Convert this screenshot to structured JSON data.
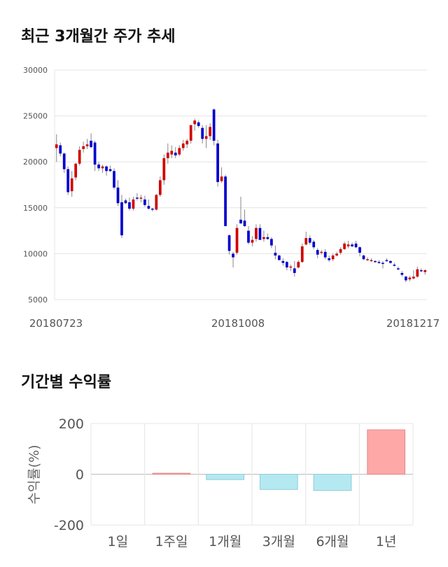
{
  "price_section": {
    "title": "최근 3개월간 주가 추세"
  },
  "returns_section": {
    "title": "기간별 수익률"
  },
  "chart_data": [
    {
      "type": "candlestick",
      "ylim": [
        5000,
        30000
      ],
      "yticks": [
        5000,
        10000,
        15000,
        20000,
        25000,
        30000
      ],
      "xticks": [
        "20180723",
        "20181008",
        "20181217"
      ],
      "grid": true,
      "colors": {
        "up": "#d10000",
        "down": "#0000cc",
        "wick": "#888888"
      },
      "ohlc": [
        [
          21500,
          23000,
          20000,
          21900
        ],
        [
          21800,
          22100,
          20600,
          20900
        ],
        [
          20900,
          21000,
          18800,
          19200
        ],
        [
          19200,
          19500,
          16400,
          16700
        ],
        [
          16800,
          19000,
          16200,
          18200
        ],
        [
          18300,
          19900,
          18000,
          19800
        ],
        [
          19800,
          21700,
          19600,
          21300
        ],
        [
          21400,
          22200,
          21000,
          21700
        ],
        [
          21700,
          22500,
          21400,
          21900
        ],
        [
          22300,
          23100,
          21500,
          21600
        ],
        [
          22100,
          22300,
          19000,
          19700
        ],
        [
          19700,
          20000,
          19000,
          19300
        ],
        [
          19300,
          19700,
          18800,
          19500
        ],
        [
          19500,
          19600,
          18500,
          19000
        ],
        [
          19200,
          19600,
          18900,
          19000
        ],
        [
          19000,
          19300,
          17000,
          17200
        ],
        [
          17200,
          18000,
          15200,
          15500
        ],
        [
          15600,
          16400,
          11700,
          12000
        ],
        [
          15800,
          16000,
          15400,
          15500
        ],
        [
          15600,
          16100,
          14700,
          14900
        ],
        [
          14900,
          16200,
          14700,
          15900
        ],
        [
          16100,
          16600,
          15800,
          16000
        ],
        [
          16000,
          16400,
          15600,
          16100
        ],
        [
          15900,
          16300,
          15100,
          15300
        ],
        [
          15200,
          15900,
          14800,
          14900
        ],
        [
          14900,
          15000,
          14600,
          14800
        ],
        [
          14800,
          16500,
          14700,
          16400
        ],
        [
          16400,
          18400,
          16200,
          18000
        ],
        [
          18000,
          20800,
          17500,
          20400
        ],
        [
          20400,
          22000,
          19800,
          21000
        ],
        [
          20800,
          21800,
          20400,
          21200
        ],
        [
          21000,
          21600,
          20400,
          20700
        ],
        [
          20800,
          21800,
          20600,
          21500
        ],
        [
          21500,
          22400,
          21200,
          22000
        ],
        [
          21900,
          22500,
          21500,
          22300
        ],
        [
          22300,
          24000,
          22000,
          24000
        ],
        [
          24100,
          24700,
          23400,
          24500
        ],
        [
          24300,
          24500,
          23700,
          23900
        ],
        [
          23700,
          24000,
          22000,
          22500
        ],
        [
          22500,
          24000,
          21500,
          22800
        ],
        [
          22800,
          24200,
          22400,
          23800
        ],
        [
          25700,
          25800,
          21800,
          22300
        ],
        [
          22000,
          22400,
          17300,
          17800
        ],
        [
          17900,
          19400,
          17700,
          18400
        ],
        [
          18400,
          18600,
          13000,
          13000
        ],
        [
          12000,
          12100,
          9900,
          10300
        ],
        [
          10000,
          10200,
          8500,
          9600
        ],
        [
          10100,
          13200,
          9900,
          12800
        ],
        [
          13700,
          16200,
          13200,
          13300
        ],
        [
          13600,
          14800,
          12900,
          13000
        ],
        [
          12500,
          13000,
          11000,
          11200
        ],
        [
          11200,
          11900,
          10800,
          11500
        ],
        [
          11600,
          13200,
          11300,
          12800
        ],
        [
          12800,
          13200,
          11600,
          11500
        ],
        [
          11600,
          12500,
          11300,
          11800
        ],
        [
          11800,
          12200,
          11500,
          11600
        ],
        [
          11600,
          11800,
          10600,
          10900
        ],
        [
          10100,
          10900,
          9400,
          9800
        ],
        [
          9800,
          9900,
          9300,
          9300
        ],
        [
          9200,
          9500,
          8700,
          9000
        ],
        [
          9100,
          9200,
          8200,
          8500
        ],
        [
          8500,
          8800,
          8100,
          8600
        ],
        [
          8400,
          9200,
          7500,
          7900
        ],
        [
          8500,
          9300,
          8400,
          9100
        ],
        [
          9100,
          11100,
          9000,
          10800
        ],
        [
          11000,
          12400,
          10900,
          11700
        ],
        [
          11700,
          12000,
          11000,
          11200
        ],
        [
          11300,
          11500,
          10500,
          10700
        ],
        [
          10400,
          10600,
          9500,
          9900
        ],
        [
          10100,
          10400,
          9900,
          10200
        ],
        [
          10200,
          10500,
          9400,
          9600
        ],
        [
          9500,
          9800,
          9100,
          9300
        ],
        [
          9400,
          10000,
          9200,
          9800
        ],
        [
          9800,
          10200,
          9700,
          10000
        ],
        [
          10100,
          10700,
          9900,
          10500
        ],
        [
          10500,
          11300,
          10400,
          11100
        ],
        [
          10800,
          11400,
          10600,
          11000
        ],
        [
          11000,
          11200,
          10700,
          10800
        ],
        [
          11100,
          11400,
          10600,
          10700
        ],
        [
          10700,
          10800,
          9700,
          10100
        ],
        [
          9800,
          9900,
          9300,
          9400
        ],
        [
          9300,
          9600,
          9200,
          9400
        ],
        [
          9300,
          9500,
          9100,
          9300
        ],
        [
          9200,
          9300,
          9000,
          9100
        ],
        [
          9100,
          9300,
          8900,
          9000
        ],
        [
          9000,
          9200,
          8400,
          8900
        ],
        [
          9300,
          9500,
          9100,
          9200
        ],
        [
          9200,
          9300,
          8900,
          9000
        ],
        [
          8800,
          9000,
          8600,
          8700
        ],
        [
          8400,
          8600,
          8200,
          8300
        ],
        [
          7900,
          8100,
          7500,
          7700
        ],
        [
          7500,
          7600,
          6900,
          7100
        ],
        [
          7200,
          7600,
          7000,
          7400
        ],
        [
          7300,
          8200,
          7200,
          7500
        ],
        [
          7500,
          8600,
          7400,
          8300
        ],
        [
          8200,
          8400,
          8000,
          8100
        ],
        [
          8000,
          8300,
          7700,
          8200
        ]
      ]
    },
    {
      "type": "bar",
      "categories": [
        "1일",
        "1주일",
        "1개월",
        "3개월",
        "6개월",
        "1년"
      ],
      "values": [
        0,
        4,
        -21,
        -60,
        -64,
        175
      ],
      "ylim": [
        -200,
        200
      ],
      "yticks": [
        "200",
        "0",
        "-200"
      ],
      "ylabel": "수익률(%)",
      "grid": true,
      "colors": {
        "positive": "#ffa8a8",
        "positive_edge": "#e08888",
        "negative": "#b5e9f2",
        "negative_edge": "#8ccbd8"
      }
    }
  ]
}
